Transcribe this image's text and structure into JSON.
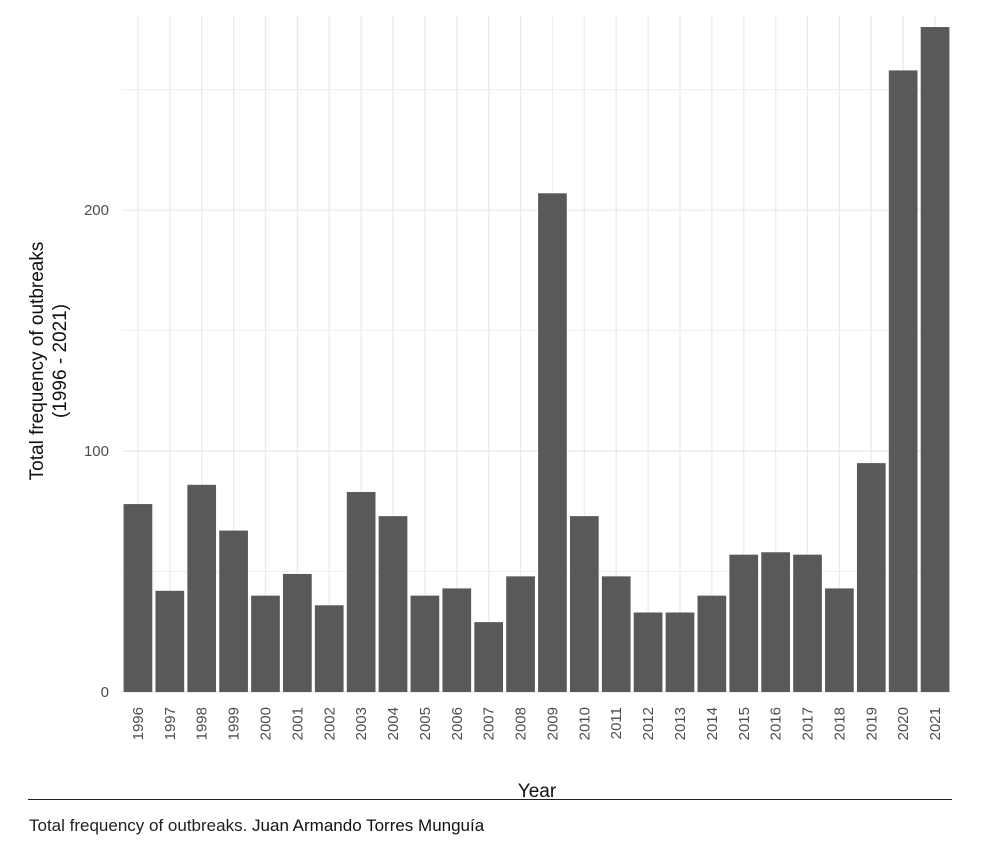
{
  "chart_data": {
    "type": "bar",
    "categories": [
      "1996",
      "1997",
      "1998",
      "1999",
      "2000",
      "2001",
      "2002",
      "2003",
      "2004",
      "2005",
      "2006",
      "2007",
      "2008",
      "2009",
      "2010",
      "2011",
      "2012",
      "2013",
      "2014",
      "2015",
      "2016",
      "2017",
      "2018",
      "2019",
      "2020",
      "2021"
    ],
    "values": [
      78,
      42,
      86,
      67,
      40,
      49,
      36,
      83,
      73,
      40,
      43,
      29,
      48,
      207,
      73,
      48,
      33,
      33,
      40,
      57,
      58,
      57,
      43,
      95,
      258,
      276
    ],
    "xlabel": "Year",
    "ylabel": [
      "Total frequency of outbreaks",
      "(1996 - 2021)"
    ],
    "yticks": [
      0,
      100,
      200
    ],
    "ylim": [
      0,
      281
    ],
    "grid": true,
    "bar_color": "#595959",
    "grid_color": "#ebebeb"
  },
  "caption": {
    "text": "Total frequency of outbreaks.",
    "credit": "Juan Armando Torres Munguía"
  }
}
